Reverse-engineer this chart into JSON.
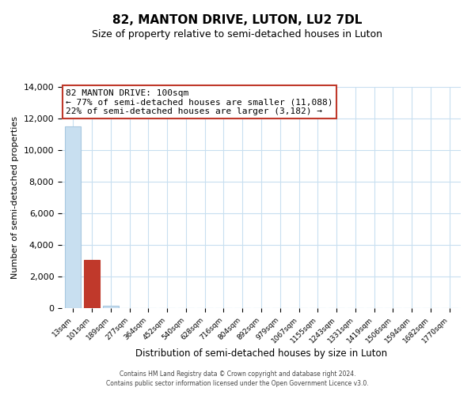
{
  "title": "82, MANTON DRIVE, LUTON, LU2 7DL",
  "subtitle": "Size of property relative to semi-detached houses in Luton",
  "xlabel": "Distribution of semi-detached houses by size in Luton",
  "ylabel": "Number of semi-detached properties",
  "bar_labels": [
    "13sqm",
    "101sqm",
    "189sqm",
    "277sqm",
    "364sqm",
    "452sqm",
    "540sqm",
    "628sqm",
    "716sqm",
    "804sqm",
    "892sqm",
    "979sqm",
    "1067sqm",
    "1155sqm",
    "1243sqm",
    "1331sqm",
    "1419sqm",
    "1506sqm",
    "1594sqm",
    "1682sqm",
    "1770sqm"
  ],
  "bar_values": [
    11500,
    3050,
    130,
    0,
    0,
    0,
    0,
    0,
    0,
    0,
    0,
    0,
    0,
    0,
    0,
    0,
    0,
    0,
    0,
    0,
    0
  ],
  "highlight_bar_index": 1,
  "highlight_color": "#c0392b",
  "normal_color": "#c8dff0",
  "highlight_edge_color": "#c0392b",
  "normal_edge_color": "#a8c8e0",
  "ylim": [
    0,
    14000
  ],
  "yticks": [
    0,
    2000,
    4000,
    6000,
    8000,
    10000,
    12000,
    14000
  ],
  "annotation_title": "82 MANTON DRIVE: 100sqm",
  "annotation_line1": "← 77% of semi-detached houses are smaller (11,088)",
  "annotation_line2": "22% of semi-detached houses are larger (3,182) →",
  "annotation_box_color": "#ffffff",
  "annotation_box_edge": "#c0392b",
  "footnote1": "Contains HM Land Registry data © Crown copyright and database right 2024.",
  "footnote2": "Contains public sector information licensed under the Open Government Licence v3.0.",
  "background_color": "#ffffff",
  "grid_color": "#c8dff0"
}
